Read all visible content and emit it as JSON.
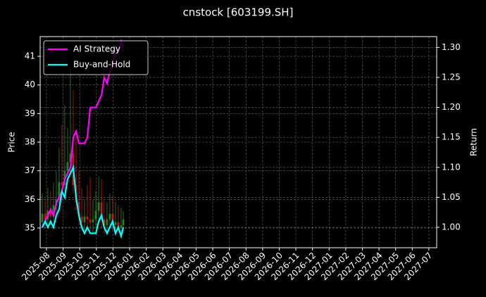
{
  "chart_data": {
    "type": "candlestick",
    "title": "cnstock [603199.SH]",
    "ylabel": "Price",
    "y2label": "Return",
    "x": [
      -0.25,
      -0.08,
      0.08,
      0.25,
      0.42,
      0.59,
      0.76,
      0.93,
      1.1,
      1.27,
      1.44,
      1.61,
      1.78,
      1.95,
      2.12,
      2.29,
      2.46,
      2.63,
      2.8,
      2.97,
      3.14,
      3.31,
      3.47,
      3.64,
      3.81,
      3.98,
      4.15,
      4.32,
      4.49,
      4.62
    ],
    "open": [
      35.2,
      35.5,
      35.3,
      35.6,
      35.4,
      35.8,
      36.0,
      36.6,
      36.5,
      37.0,
      37.3,
      37.6,
      36.5,
      35.9,
      35.4,
      35.2,
      35.4,
      35.3,
      35.2,
      35.3,
      35.6,
      35.9,
      35.3,
      35.1,
      35.3,
      35.5,
      35.1,
      35.2,
      35.0,
      35.1
    ],
    "close": [
      35.5,
      35.3,
      35.6,
      35.4,
      35.8,
      36.0,
      36.6,
      36.5,
      37.0,
      37.3,
      37.6,
      36.5,
      35.9,
      35.4,
      35.2,
      35.4,
      35.3,
      35.2,
      35.3,
      35.6,
      35.9,
      35.3,
      35.1,
      35.3,
      35.5,
      35.1,
      35.2,
      35.0,
      35.1,
      35.3
    ],
    "high": [
      36.2,
      36.0,
      36.4,
      36.3,
      36.6,
      37.0,
      37.8,
      38.6,
      39.3,
      38.5,
      40.6,
      39.8,
      38.2,
      37.0,
      36.4,
      36.0,
      36.5,
      36.8,
      36.0,
      36.3,
      36.8,
      36.7,
      36.0,
      35.9,
      36.2,
      36.1,
      35.9,
      35.8,
      35.7,
      35.6
    ],
    "low": [
      35.0,
      35.0,
      35.1,
      35.1,
      35.2,
      35.5,
      35.8,
      36.0,
      36.2,
      36.6,
      36.9,
      36.2,
      35.6,
      35.1,
      34.9,
      34.9,
      35.0,
      34.9,
      34.8,
      35.0,
      35.2,
      35.0,
      34.8,
      34.8,
      35.0,
      34.9,
      34.8,
      34.8,
      34.7,
      34.9
    ],
    "up_color": "#2ca02c",
    "down_color": "#e8201a",
    "series": [
      {
        "name": "AI Strategy",
        "color": "#ff00ff",
        "axis": "y2",
        "values": [
          1.0,
          1.01,
          1.02,
          1.03,
          1.02,
          1.04,
          1.05,
          1.06,
          1.08,
          1.09,
          1.1,
          1.15,
          1.16,
          1.14,
          1.14,
          1.14,
          1.15,
          1.2,
          1.2,
          1.2,
          1.21,
          1.22,
          1.25,
          1.24,
          1.26,
          1.27,
          1.3,
          1.29,
          1.31,
          1.3
        ]
      },
      {
        "name": "Buy-and-Hold",
        "color": "#00ffff",
        "axis": "y2",
        "values": [
          1.0,
          1.01,
          1.0,
          1.01,
          1.0,
          1.02,
          1.03,
          1.06,
          1.05,
          1.08,
          1.09,
          1.1,
          1.05,
          1.02,
          1.0,
          0.99,
          1.0,
          0.99,
          0.99,
          0.99,
          1.01,
          1.02,
          1.0,
          0.99,
          1.0,
          1.01,
          0.99,
          1.0,
          0.985,
          1.0
        ]
      }
    ],
    "xlim": [
      -0.38,
      23.47
    ],
    "xticks": [
      {
        "value": 0,
        "label": "2025-08"
      },
      {
        "value": 1,
        "label": "2025-09"
      },
      {
        "value": 2,
        "label": "2025-10"
      },
      {
        "value": 3,
        "label": "2025-11"
      },
      {
        "value": 4,
        "label": "2025-12"
      },
      {
        "value": 5,
        "label": "2026-01"
      },
      {
        "value": 6,
        "label": "2026-02"
      },
      {
        "value": 7,
        "label": "2026-03"
      },
      {
        "value": 8,
        "label": "2026-04"
      },
      {
        "value": 9,
        "label": "2026-05"
      },
      {
        "value": 10,
        "label": "2026-06"
      },
      {
        "value": 11,
        "label": "2026-07"
      },
      {
        "value": 12,
        "label": "2026-08"
      },
      {
        "value": 13,
        "label": "2026-09"
      },
      {
        "value": 14,
        "label": "2026-10"
      },
      {
        "value": 15,
        "label": "2026-11"
      },
      {
        "value": 16,
        "label": "2026-12"
      },
      {
        "value": 17,
        "label": "2027-01"
      },
      {
        "value": 18,
        "label": "2027-02"
      },
      {
        "value": 19,
        "label": "2027-03"
      },
      {
        "value": 20,
        "label": "2027-04"
      },
      {
        "value": 21,
        "label": "2027-05"
      },
      {
        "value": 22,
        "label": "2027-06"
      },
      {
        "value": 23,
        "label": "2027-07"
      }
    ],
    "ylim": [
      34.31,
      41.69
    ],
    "yticks": [
      35,
      36,
      37,
      38,
      39,
      40,
      41
    ],
    "y2lim": [
      0.966,
      1.318
    ],
    "y2ticks": [
      {
        "value": 1.0,
        "label": "1.00"
      },
      {
        "value": 1.05,
        "label": "1.05"
      },
      {
        "value": 1.1,
        "label": "1.10"
      },
      {
        "value": 1.15,
        "label": "1.15"
      },
      {
        "value": 1.2,
        "label": "1.20"
      },
      {
        "value": 1.25,
        "label": "1.25"
      },
      {
        "value": 1.3,
        "label": "1.30"
      }
    ],
    "grid": true,
    "legend": "upper left"
  }
}
